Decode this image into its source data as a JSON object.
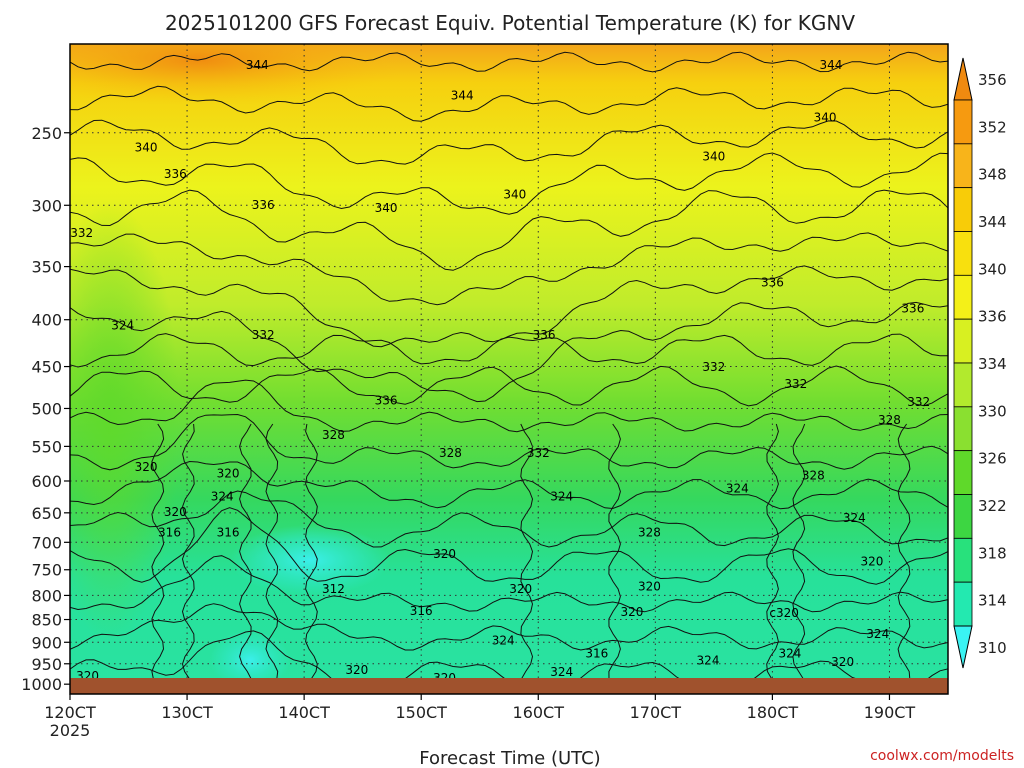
{
  "chart_data": {
    "type": "heatmap",
    "title": "2025101200 GFS Forecast Equiv. Potential Temperature (K) for KGNV",
    "xlabel": "Forecast Time (UTC)",
    "ylabel": "",
    "credit": "coolwx.com/modelts",
    "x_ticks": [
      "120CT",
      "130CT",
      "140CT",
      "150CT",
      "160CT",
      "170CT",
      "180CT",
      "190CT"
    ],
    "x_year": "2025",
    "x_range_days": [
      12,
      19.5
    ],
    "y_ticks": [
      250,
      300,
      350,
      400,
      450,
      500,
      550,
      600,
      650,
      700,
      750,
      800,
      850,
      900,
      950,
      1000
    ],
    "y_range_hpa": [
      200,
      1025
    ],
    "y_scale": "log-pressure",
    "grid": true,
    "colorbar": {
      "levels": [
        310,
        314,
        318,
        322,
        326,
        330,
        334,
        336,
        340,
        344,
        348,
        352,
        356
      ],
      "labels": [
        "310",
        "314",
        "318",
        "322",
        "326",
        "330",
        "334",
        "336",
        "340",
        "344",
        "348",
        "352",
        "356"
      ],
      "colors": [
        "#3af3f3",
        "#23e9b0",
        "#28e17c",
        "#3dd642",
        "#5fd92a",
        "#8ae030",
        "#b2ea2d",
        "#d8f021",
        "#f4f018",
        "#f8e00e",
        "#f8cc08",
        "#f8b41a",
        "#f69a10",
        "#f08a10"
      ]
    },
    "contour_labels": [
      {
        "text": "344",
        "day": 13.6,
        "p": 213
      },
      {
        "text": "344",
        "day": 15.35,
        "p": 230
      },
      {
        "text": "344",
        "day": 18.5,
        "p": 213
      },
      {
        "text": "340",
        "day": 12.65,
        "p": 262
      },
      {
        "text": "336",
        "day": 12.9,
        "p": 280
      },
      {
        "text": "332",
        "day": 12.1,
        "p": 325
      },
      {
        "text": "340",
        "day": 18.45,
        "p": 243
      },
      {
        "text": "340",
        "day": 17.5,
        "p": 268
      },
      {
        "text": "340",
        "day": 15.8,
        "p": 295
      },
      {
        "text": "336",
        "day": 13.65,
        "p": 303
      },
      {
        "text": "340",
        "day": 14.7,
        "p": 305
      },
      {
        "text": "336",
        "day": 18.0,
        "p": 368
      },
      {
        "text": "336",
        "day": 19.2,
        "p": 393
      },
      {
        "text": "324",
        "day": 12.45,
        "p": 410
      },
      {
        "text": "332",
        "day": 13.65,
        "p": 420
      },
      {
        "text": "336",
        "day": 16.05,
        "p": 420
      },
      {
        "text": "332",
        "day": 17.5,
        "p": 455
      },
      {
        "text": "332",
        "day": 18.2,
        "p": 475
      },
      {
        "text": "336",
        "day": 14.7,
        "p": 495
      },
      {
        "text": "332",
        "day": 19.25,
        "p": 497
      },
      {
        "text": "328",
        "day": 19.0,
        "p": 520
      },
      {
        "text": "328",
        "day": 14.25,
        "p": 540
      },
      {
        "text": "328",
        "day": 15.25,
        "p": 565
      },
      {
        "text": "332",
        "day": 16.0,
        "p": 565
      },
      {
        "text": "320",
        "day": 12.65,
        "p": 585
      },
      {
        "text": "320",
        "day": 13.35,
        "p": 595
      },
      {
        "text": "324",
        "day": 13.3,
        "p": 630
      },
      {
        "text": "328",
        "day": 18.35,
        "p": 598
      },
      {
        "text": "324",
        "day": 16.2,
        "p": 630
      },
      {
        "text": "324",
        "day": 17.7,
        "p": 618
      },
      {
        "text": "320",
        "day": 12.9,
        "p": 655
      },
      {
        "text": "316",
        "day": 12.85,
        "p": 690
      },
      {
        "text": "316",
        "day": 13.35,
        "p": 690
      },
      {
        "text": "324",
        "day": 18.7,
        "p": 665
      },
      {
        "text": "328",
        "day": 16.95,
        "p": 690
      },
      {
        "text": "320",
        "day": 15.2,
        "p": 728
      },
      {
        "text": "320",
        "day": 18.85,
        "p": 742
      },
      {
        "text": "312",
        "day": 14.25,
        "p": 795
      },
      {
        "text": "320",
        "day": 15.85,
        "p": 795
      },
      {
        "text": "320",
        "day": 16.95,
        "p": 790
      },
      {
        "text": "316",
        "day": 15.0,
        "p": 840
      },
      {
        "text": "320",
        "day": 16.8,
        "p": 842
      },
      {
        "text": "c320",
        "day": 18.1,
        "p": 845
      },
      {
        "text": "324",
        "day": 18.9,
        "p": 890
      },
      {
        "text": "324",
        "day": 15.7,
        "p": 905
      },
      {
        "text": "316",
        "day": 16.5,
        "p": 935
      },
      {
        "text": "324",
        "day": 17.45,
        "p": 952
      },
      {
        "text": "324",
        "day": 18.15,
        "p": 935
      },
      {
        "text": "320",
        "day": 18.6,
        "p": 955
      },
      {
        "text": "320",
        "day": 14.45,
        "p": 975
      },
      {
        "text": "324",
        "day": 16.2,
        "p": 980
      },
      {
        "text": "320",
        "day": 12.15,
        "p": 990
      },
      {
        "text": "320",
        "day": 15.2,
        "p": 995
      }
    ]
  }
}
